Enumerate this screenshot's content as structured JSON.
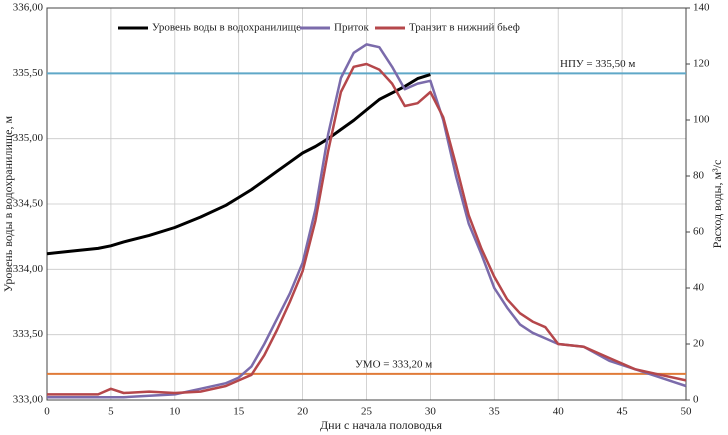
{
  "chart_data": {
    "type": "line",
    "xlabel": "Дни с начала половодья",
    "ylabel": "Уровень воды в водохранилище, м",
    "y2label": "Расход воды, м³/с",
    "x": [
      0,
      2,
      4,
      5,
      6,
      8,
      10,
      12,
      14,
      15,
      16,
      17,
      18,
      19,
      20,
      21,
      22,
      23,
      24,
      25,
      26,
      27,
      28,
      29,
      30,
      31,
      32,
      33,
      34,
      35,
      36,
      37,
      38,
      39,
      40,
      42,
      44,
      46,
      48,
      50
    ],
    "series": [
      {
        "name": "Уровень воды в водохранилище",
        "color": "#000000",
        "axis": "y",
        "values": [
          334.12,
          334.14,
          334.16,
          334.18,
          334.21,
          334.26,
          334.32,
          334.4,
          334.49,
          334.55,
          334.61,
          334.68,
          334.75,
          334.82,
          334.89,
          334.94,
          335.0,
          335.07,
          335.14,
          335.22,
          335.3,
          335.35,
          335.4,
          335.46,
          335.49,
          null,
          null,
          null,
          null,
          null,
          null,
          null,
          null,
          null,
          null,
          null,
          null,
          null,
          null,
          null
        ]
      },
      {
        "name": "Приток",
        "color": "#7b6bab",
        "axis": "y2",
        "values": [
          1,
          1,
          1,
          1,
          1,
          1.5,
          2,
          4,
          6,
          8,
          12,
          20,
          29,
          38,
          49,
          68,
          95,
          115,
          124,
          127,
          126,
          119,
          111,
          113,
          114,
          100,
          80,
          63,
          52,
          40,
          33,
          27,
          24,
          22,
          20,
          19,
          14,
          11,
          8,
          5
        ]
      },
      {
        "name": "Транзит в нижний бьеф",
        "color": "#b5474b",
        "axis": "y2",
        "values": [
          2,
          2,
          2,
          4,
          2.5,
          3,
          2.5,
          3,
          5,
          7,
          9,
          16,
          25,
          35,
          46,
          64,
          89,
          110,
          119,
          120,
          118,
          113,
          105,
          106,
          110,
          101,
          84,
          66,
          54,
          44,
          36,
          31,
          28,
          26,
          20,
          19,
          15,
          11,
          9,
          7
        ]
      }
    ],
    "hlines": [
      {
        "value": 335.5,
        "label": "НПУ = 335,50 м",
        "color": "#5fa8c8"
      },
      {
        "value": 333.2,
        "label": "УМО = 333,20 м",
        "color": "#e07b39"
      }
    ],
    "xlim": [
      0,
      50
    ],
    "xticks": [
      0,
      5,
      10,
      15,
      20,
      25,
      30,
      35,
      40,
      45,
      50
    ],
    "ylim": [
      333,
      336
    ],
    "yticks": [
      {
        "value": 333,
        "label": "333,00"
      },
      {
        "value": 333.5,
        "label": "333,50"
      },
      {
        "value": 334,
        "label": "334,00"
      },
      {
        "value": 334.5,
        "label": "334,50"
      },
      {
        "value": 335,
        "label": "335,00"
      },
      {
        "value": 335.5,
        "label": "335,50"
      },
      {
        "value": 336,
        "label": "336,00"
      }
    ],
    "y2lim": [
      0,
      140
    ],
    "y2ticks": [
      0,
      20,
      40,
      60,
      80,
      100,
      120,
      140
    ],
    "grid": true
  }
}
